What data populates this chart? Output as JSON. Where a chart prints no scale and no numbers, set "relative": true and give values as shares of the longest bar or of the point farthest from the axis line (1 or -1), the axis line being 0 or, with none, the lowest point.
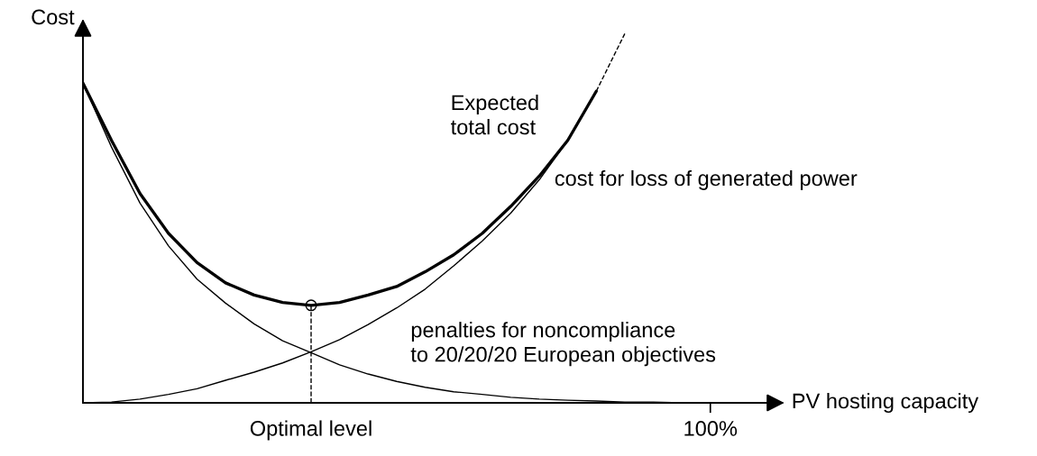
{
  "chart_data": {
    "type": "line",
    "relative": true,
    "xlabel": "PV hosting capacity",
    "ylabel": "Cost",
    "tick_labels": "x",
    "categories": [
      null,
      null,
      null,
      null,
      null,
      null,
      null,
      null,
      "Optimal level",
      null,
      null,
      null,
      null,
      null,
      null,
      null,
      null,
      null,
      null,
      null,
      null,
      null,
      "100%",
      null,
      null
    ],
    "series": [
      {
        "color": "#000000",
        "values": [
          0.866,
          0.711,
          0.567,
          0.459,
          0.38,
          0.325,
          0.292,
          0.272,
          0.264,
          0.272,
          0.292,
          0.315,
          0.355,
          0.401,
          0.459,
          0.532,
          0.614,
          0.711,
          0.844,
          null,
          null,
          null,
          null,
          null,
          null
        ]
      },
      {
        "color": "#000000",
        "line_style": "dashed",
        "values": [
          null,
          null,
          null,
          null,
          null,
          null,
          null,
          null,
          null,
          null,
          null,
          null,
          null,
          null,
          null,
          null,
          null,
          null,
          0.844,
          1,
          null,
          null,
          null,
          null,
          null
        ]
      },
      {
        "color": "#000000",
        "values": [
          0,
          0.002,
          0.01,
          0.023,
          0.038,
          0.061,
          0.083,
          0.108,
          0.138,
          0.171,
          0.212,
          0.257,
          0.308,
          0.371,
          0.438,
          0.514,
          0.604,
          0.711,
          0.844,
          null,
          null,
          null,
          null,
          null,
          null
        ]
      },
      {
        "color": "#000000",
        "values": [
          0.866,
          0.693,
          0.541,
          0.425,
          0.335,
          0.27,
          0.214,
          0.168,
          0.136,
          0.103,
          0.078,
          0.058,
          0.042,
          0.03,
          0.023,
          0.015,
          0.01,
          0.007,
          0.005,
          0.002,
          0.002,
          0,
          0,
          null,
          null
        ]
      },
      {
        "type": "scatter",
        "marker": "circle",
        "color": "#000000",
        "x": [
          "Optimal level"
        ],
        "values": [
          0.264
        ]
      },
      {
        "type": "line",
        "line_style": "dashed",
        "color": "#000000",
        "x": [
          "Optimal level",
          "Optimal level"
        ],
        "values": [
          0,
          0.264
        ]
      }
    ],
    "annotations": [
      "Expected\ntotal cost",
      "cost for loss of generated power",
      "penalties for noncompliance\nto 20/20/20 European objectives"
    ]
  }
}
